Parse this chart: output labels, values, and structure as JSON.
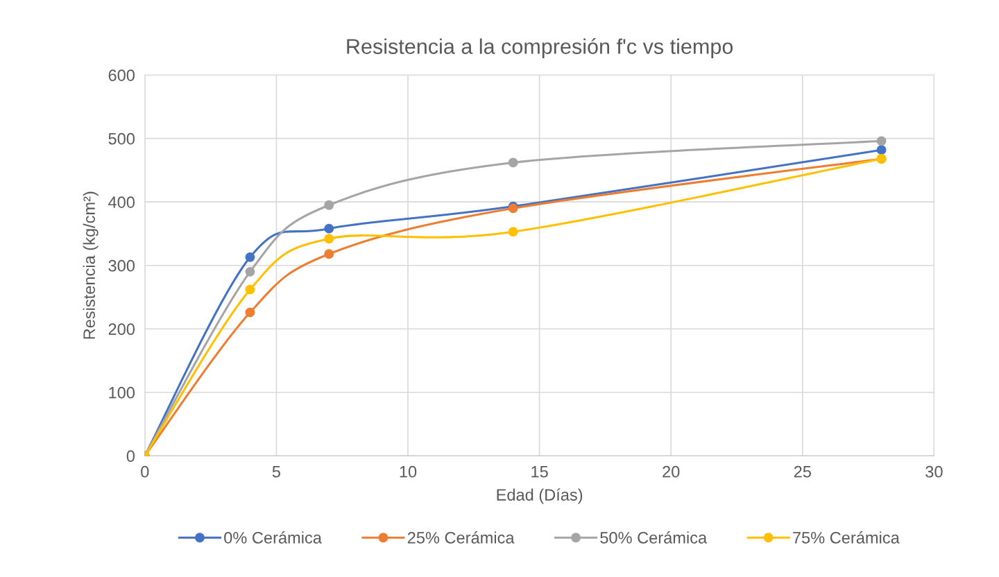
{
  "chart_data": {
    "type": "line",
    "title": "Resistencia a la compresión f'c vs tiempo",
    "xlabel": "Edad (Días)",
    "ylabel": "Resistencia (kg/cm²)",
    "x": [
      0,
      4,
      7,
      14,
      28
    ],
    "series": [
      {
        "name": "0% Cerámica",
        "color": "#4472c4",
        "values": [
          0,
          313,
          358,
          393,
          482
        ]
      },
      {
        "name": "25% Cerámica",
        "color": "#ed7d31",
        "values": [
          0,
          226,
          318,
          390,
          468
        ]
      },
      {
        "name": "50% Cerámica",
        "color": "#a5a5a5",
        "values": [
          0,
          290,
          395,
          462,
          496
        ]
      },
      {
        "name": "75% Cerámica",
        "color": "#ffc000",
        "values": [
          0,
          262,
          342,
          353,
          468
        ]
      }
    ],
    "xlim": [
      0,
      30
    ],
    "xticks": [
      0,
      5,
      10,
      15,
      20,
      25,
      30
    ],
    "ylim": [
      0,
      600
    ],
    "yticks": [
      0,
      100,
      200,
      300,
      400,
      500,
      600
    ],
    "grid": true,
    "legend": "bottom",
    "marker": "circle",
    "line_style": "solid"
  }
}
